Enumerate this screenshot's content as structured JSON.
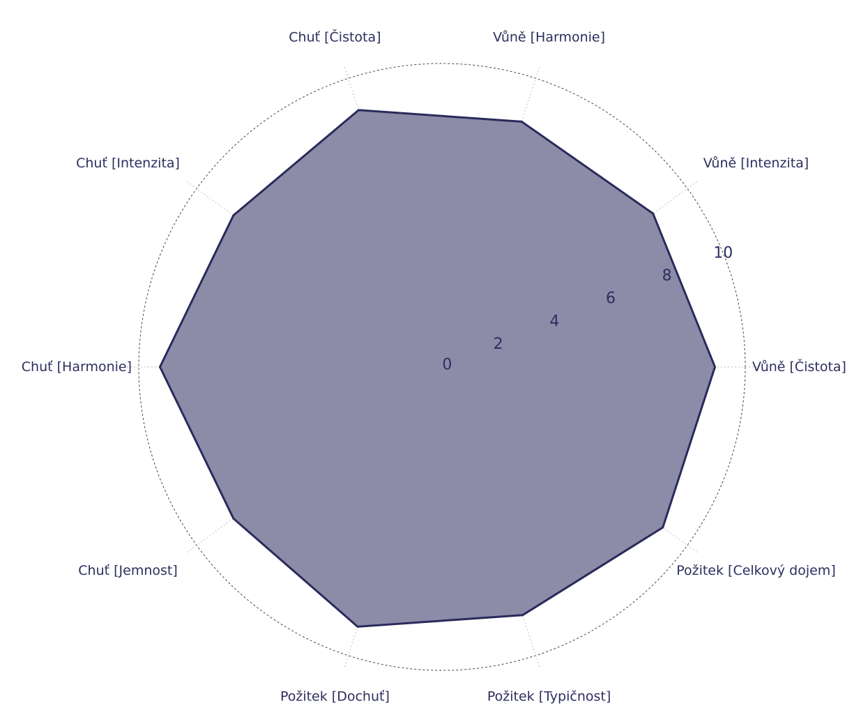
{
  "colors": {
    "series_line": "#2a2a5c",
    "series_fill": "#8c8ca8",
    "grid_line": "#444444",
    "spoke_line": "#c8c8c8",
    "text": "#2d2e5f"
  },
  "chart_data": {
    "type": "radar",
    "axes": [
      "Vůně [Čistota]",
      "Vůně [Intenzita]",
      "Vůně [Harmonie]",
      "Chuť [Čistota]",
      "Chuť [Intenzita]",
      "Chuť [Harmonie]",
      "Chuť [Jemnost]",
      "Požitek [Dochuť]",
      "Požitek [Typičnost]",
      "Požitek [Celkový dojem]"
    ],
    "series": [
      {
        "values": [
          9.0,
          8.6,
          8.5,
          8.9,
          8.5,
          9.3,
          8.5,
          9.0,
          8.6,
          9.0
        ]
      }
    ],
    "r_range": [
      0,
      10
    ],
    "r_ticks": [
      0,
      2,
      4,
      6,
      8,
      10
    ],
    "grid": true,
    "gridline_style": "dashed",
    "spoke_style": "dotted"
  }
}
